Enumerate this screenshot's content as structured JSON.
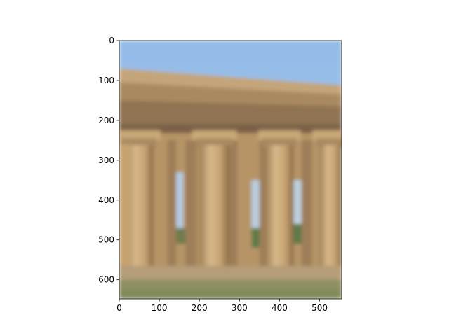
{
  "figure": {
    "background": "#ffffff"
  },
  "chart_data": {
    "type": "image",
    "title": "",
    "xlabel": "",
    "ylabel": "",
    "image_size": {
      "width": 555,
      "height": 648
    },
    "xlim": [
      0,
      555
    ],
    "ylim": [
      648,
      0
    ],
    "y_inverted": true,
    "x_ticks": [
      0,
      100,
      200,
      300,
      400,
      500
    ],
    "y_ticks": [
      0,
      100,
      200,
      300,
      400,
      500,
      600
    ],
    "grid": false,
    "legend": "none",
    "content": "blurred photograph of the colonnade of an ancient Greek Doric temple (sandstone columns and entablature) against a pale blue sky",
    "colors": {
      "sky": "#9ec1e6",
      "stone_light": "#c9a77a",
      "stone_dark": "#8a6c4a",
      "shadow": "#6b5a44",
      "ground": "#8c8f62",
      "foliage": "#5e7a48"
    }
  }
}
